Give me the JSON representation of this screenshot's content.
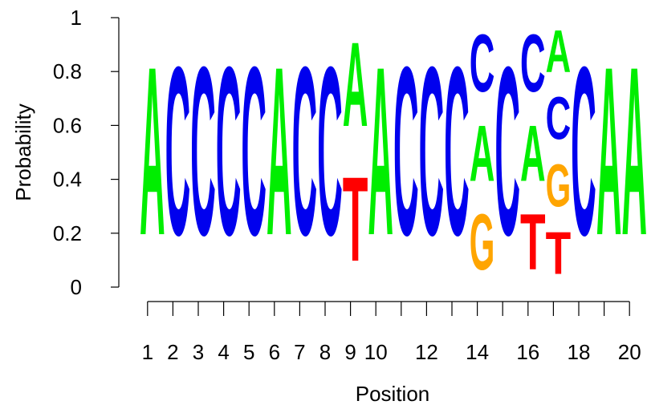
{
  "chart_data": {
    "type": "sequence-logo",
    "xlabel": "Position",
    "ylabel": "Probability",
    "ylim": [
      0,
      1
    ],
    "yticks": [
      "0",
      "0.2",
      "0.4",
      "0.6",
      "0.8",
      "1"
    ],
    "xtick_labels": [
      "1",
      "2",
      "3",
      "4",
      "5",
      "6",
      "7",
      "8",
      "9",
      "10",
      "",
      "12",
      "",
      "14",
      "",
      "16",
      "",
      "18",
      "",
      "20"
    ],
    "colors": {
      "A": "#00ee00",
      "C": "#0000ee",
      "G": "#ffa500",
      "T": "#ff0000"
    },
    "positions": [
      [
        {
          "letter": "A",
          "p": 1.0
        }
      ],
      [
        {
          "letter": "C",
          "p": 1.0
        }
      ],
      [
        {
          "letter": "C",
          "p": 1.0
        }
      ],
      [
        {
          "letter": "C",
          "p": 1.0
        }
      ],
      [
        {
          "letter": "C",
          "p": 1.0
        }
      ],
      [
        {
          "letter": "A",
          "p": 1.0
        }
      ],
      [
        {
          "letter": "C",
          "p": 1.0
        }
      ],
      [
        {
          "letter": "C",
          "p": 1.0
        }
      ],
      [
        {
          "letter": "A",
          "p": 0.5
        },
        {
          "letter": "T",
          "p": 0.5
        }
      ],
      [
        {
          "letter": "A",
          "p": 1.0
        }
      ],
      [
        {
          "letter": "C",
          "p": 1.0
        }
      ],
      [
        {
          "letter": "C",
          "p": 1.0
        }
      ],
      [
        {
          "letter": "C",
          "p": 1.0
        }
      ],
      [
        {
          "letter": "A",
          "p": 0.33
        },
        {
          "letter": "C",
          "p": 0.34
        },
        {
          "letter": "G",
          "p": 0.33
        }
      ],
      [
        {
          "letter": "C",
          "p": 1.0
        }
      ],
      [
        {
          "letter": "A",
          "p": 0.33
        },
        {
          "letter": "C",
          "p": 0.34
        },
        {
          "letter": "T",
          "p": 0.33
        }
      ],
      [
        {
          "letter": "A",
          "p": 0.25
        },
        {
          "letter": "C",
          "p": 0.25
        },
        {
          "letter": "G",
          "p": 0.25
        },
        {
          "letter": "T",
          "p": 0.25
        }
      ],
      [
        {
          "letter": "C",
          "p": 1.0
        }
      ],
      [
        {
          "letter": "A",
          "p": 1.0
        }
      ],
      [
        {
          "letter": "A",
          "p": 1.0
        }
      ]
    ]
  }
}
